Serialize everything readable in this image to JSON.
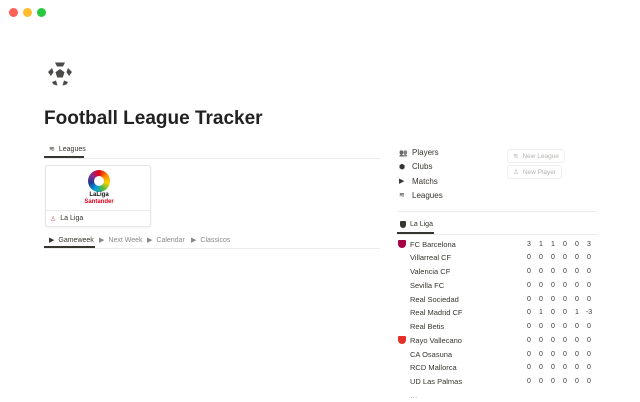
{
  "window": {
    "controls": {
      "close": "#fe5f57",
      "minimize": "#febc2e",
      "maximize": "#28c840"
    }
  },
  "page": {
    "icon": "soccer-ball-icon",
    "title": "Football League Tracker"
  },
  "leagues_tab": {
    "label": "Leagues",
    "icon": "stack-icon"
  },
  "league_card": {
    "logo_text": "LaLiga Santander",
    "name": "La Liga"
  },
  "view_tabs": [
    {
      "label": "Gameweek"
    },
    {
      "label": "Next Week"
    },
    {
      "label": "Calendar"
    },
    {
      "label": "Classicos"
    }
  ],
  "nav": [
    {
      "label": "Players",
      "icon": "people-icon"
    },
    {
      "label": "Clubs",
      "icon": "shield-icon"
    },
    {
      "label": "Matchs",
      "icon": "play-icon"
    },
    {
      "label": "Leagues",
      "icon": "stack-icon"
    }
  ],
  "buttons": {
    "new_league": "New League",
    "new_player": "New Player"
  },
  "table_tab": {
    "label": "La Liga"
  },
  "teams": [
    {
      "name": "FC Barcelona",
      "stats": [
        "3",
        "1",
        "1",
        "0",
        "0",
        "3"
      ],
      "crest": "#a50044"
    },
    {
      "name": "Villarreal CF",
      "stats": [
        "0",
        "0",
        "0",
        "0",
        "0",
        "0"
      ]
    },
    {
      "name": "Valencia CF",
      "stats": [
        "0",
        "0",
        "0",
        "0",
        "0",
        "0"
      ]
    },
    {
      "name": "Sevilla FC",
      "stats": [
        "0",
        "0",
        "0",
        "0",
        "0",
        "0"
      ]
    },
    {
      "name": "Real Sociedad",
      "stats": [
        "0",
        "0",
        "0",
        "0",
        "0",
        "0"
      ]
    },
    {
      "name": "Real Madrid CF",
      "stats": [
        "0",
        "1",
        "0",
        "0",
        "1",
        "-3"
      ]
    },
    {
      "name": "Real Betis",
      "stats": [
        "0",
        "0",
        "0",
        "0",
        "0",
        "0"
      ]
    },
    {
      "name": "Rayo Vallecano",
      "stats": [
        "0",
        "0",
        "0",
        "0",
        "0",
        "0"
      ],
      "crest": "#e53027"
    },
    {
      "name": "CA Osasuna",
      "stats": [
        "0",
        "0",
        "0",
        "0",
        "0",
        "0"
      ]
    },
    {
      "name": "RCD Mallorca",
      "stats": [
        "0",
        "0",
        "0",
        "0",
        "0",
        "0"
      ]
    },
    {
      "name": "UD Las Palmas",
      "stats": [
        "0",
        "0",
        "0",
        "0",
        "0",
        "0"
      ]
    }
  ]
}
